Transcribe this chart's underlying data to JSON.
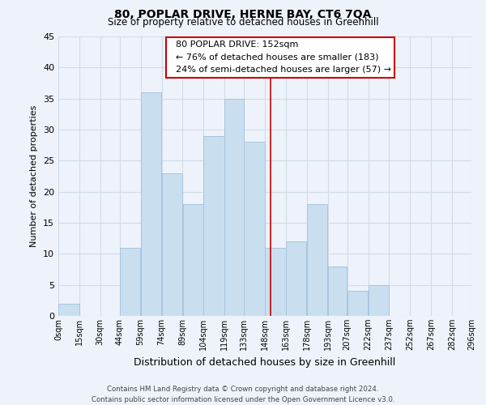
{
  "title": "80, POPLAR DRIVE, HERNE BAY, CT6 7QA",
  "subtitle": "Size of property relative to detached houses in Greenhill",
  "xlabel": "Distribution of detached houses by size in Greenhill",
  "ylabel": "Number of detached properties",
  "bar_left_edges": [
    0,
    15,
    30,
    44,
    59,
    74,
    89,
    104,
    119,
    133,
    148,
    163,
    178,
    193,
    207,
    222,
    237,
    252,
    267,
    282
  ],
  "bar_widths": [
    15,
    15,
    14,
    15,
    15,
    15,
    15,
    15,
    14,
    15,
    15,
    15,
    15,
    14,
    15,
    15,
    15,
    15,
    15,
    14
  ],
  "bar_heights": [
    2,
    0,
    0,
    11,
    36,
    23,
    18,
    29,
    35,
    28,
    11,
    12,
    18,
    8,
    4,
    5,
    0,
    0,
    0,
    0
  ],
  "bar_color": "#c9dff0",
  "bar_edge_color": "#a8c4de",
  "tick_labels": [
    "0sqm",
    "15sqm",
    "30sqm",
    "44sqm",
    "59sqm",
    "74sqm",
    "89sqm",
    "104sqm",
    "119sqm",
    "133sqm",
    "148sqm",
    "163sqm",
    "178sqm",
    "193sqm",
    "207sqm",
    "222sqm",
    "237sqm",
    "252sqm",
    "267sqm",
    "282sqm",
    "296sqm"
  ],
  "tick_positions": [
    0,
    15,
    30,
    44,
    59,
    74,
    89,
    104,
    119,
    133,
    148,
    163,
    178,
    193,
    207,
    222,
    237,
    252,
    267,
    282,
    296
  ],
  "xlim": [
    0,
    296
  ],
  "ylim": [
    0,
    45
  ],
  "yticks": [
    0,
    5,
    10,
    15,
    20,
    25,
    30,
    35,
    40,
    45
  ],
  "property_line_x": 152,
  "property_line_color": "#cc0000",
  "annotation_title": "80 POPLAR DRIVE: 152sqm",
  "annotation_line1": "← 76% of detached houses are smaller (183)",
  "annotation_line2": "24% of semi-detached houses are larger (57) →",
  "annotation_box_color": "#ffffff",
  "annotation_box_edge": "#cc0000",
  "background_color": "#eef3fb",
  "grid_color": "#d0dce8",
  "footer_line1": "Contains HM Land Registry data © Crown copyright and database right 2024.",
  "footer_line2": "Contains public sector information licensed under the Open Government Licence v3.0."
}
